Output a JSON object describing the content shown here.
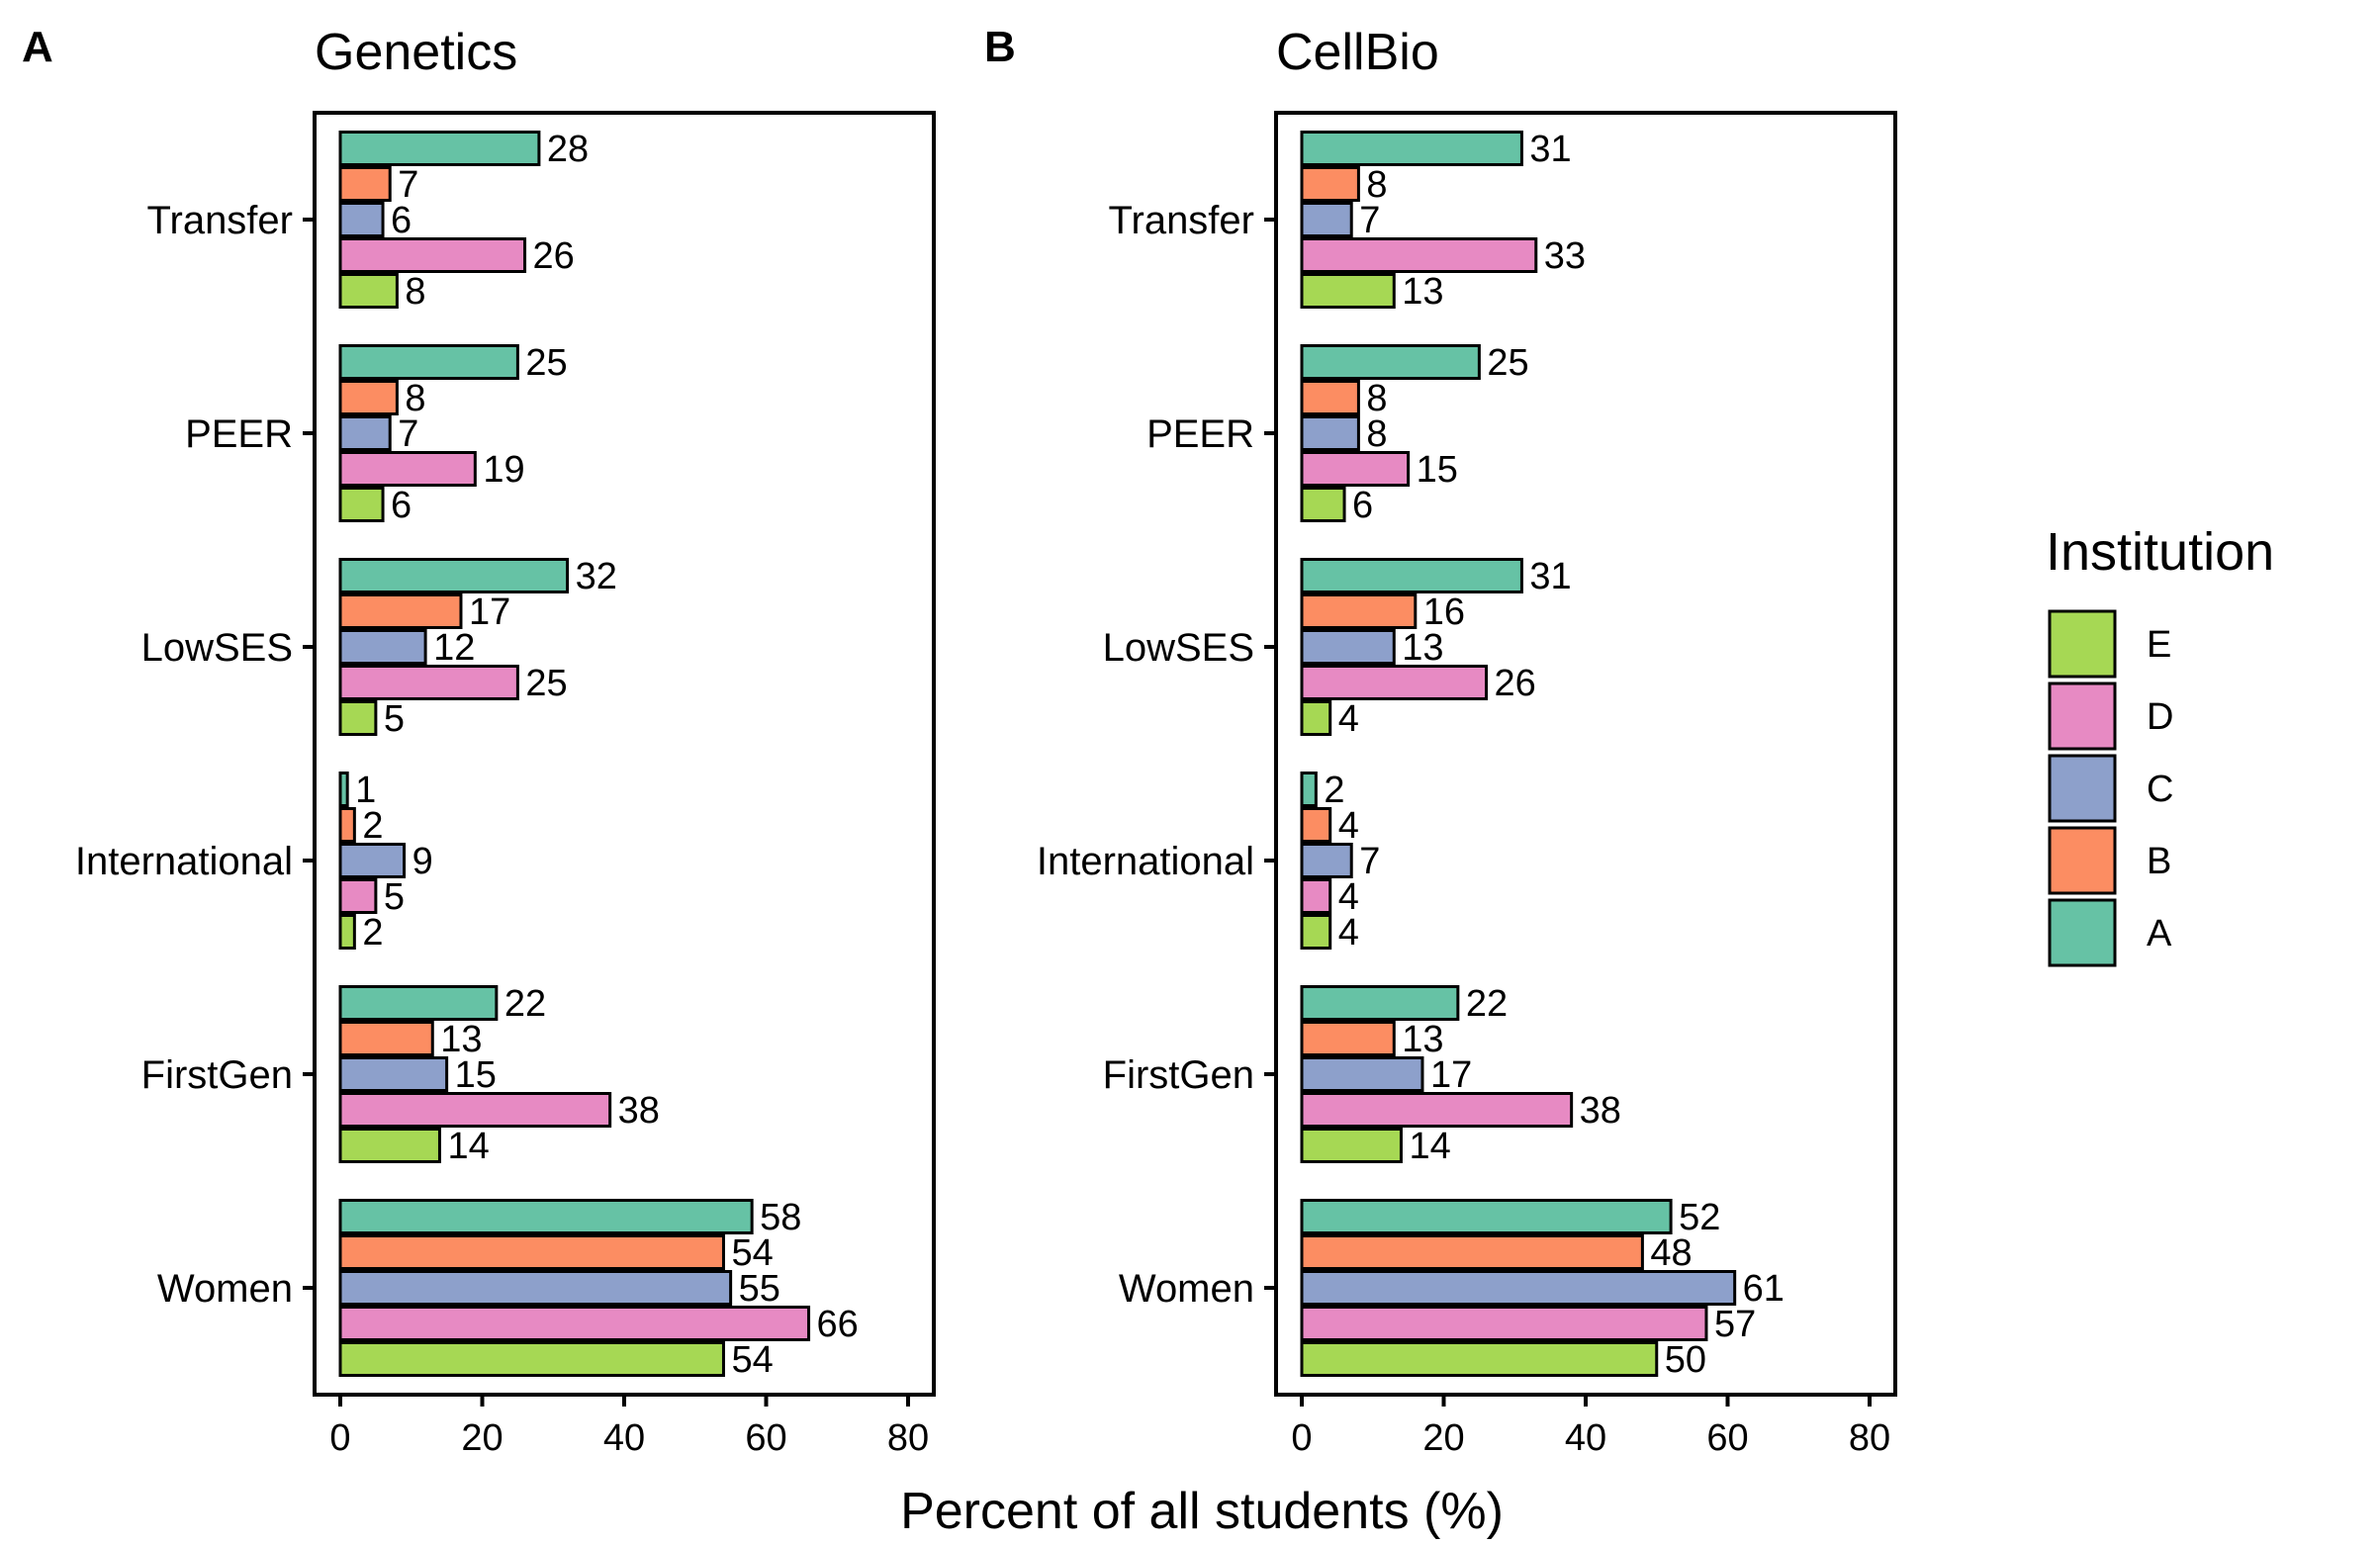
{
  "chart_data": [
    {
      "type": "bar",
      "orientation": "horizontal",
      "panel_letter": "A",
      "title": "Genetics",
      "categories": [
        "Transfer",
        "PEER",
        "LowSES",
        "International",
        "FirstGen",
        "Women"
      ],
      "series": [
        {
          "name": "A",
          "values": [
            28,
            25,
            32,
            1,
            22,
            58
          ]
        },
        {
          "name": "B",
          "values": [
            7,
            8,
            17,
            2,
            13,
            54
          ]
        },
        {
          "name": "C",
          "values": [
            6,
            7,
            12,
            9,
            15,
            55
          ]
        },
        {
          "name": "D",
          "values": [
            26,
            19,
            25,
            5,
            38,
            66
          ]
        },
        {
          "name": "E",
          "values": [
            8,
            6,
            5,
            2,
            14,
            54
          ]
        }
      ],
      "xlim": [
        0,
        80
      ],
      "xticks": [
        0,
        20,
        40,
        60,
        80
      ],
      "grid": false
    },
    {
      "type": "bar",
      "orientation": "horizontal",
      "panel_letter": "B",
      "title": "CellBio",
      "categories": [
        "Transfer",
        "PEER",
        "LowSES",
        "International",
        "FirstGen",
        "Women"
      ],
      "series": [
        {
          "name": "A",
          "values": [
            31,
            25,
            31,
            2,
            22,
            52
          ]
        },
        {
          "name": "B",
          "values": [
            8,
            8,
            16,
            4,
            13,
            48
          ]
        },
        {
          "name": "C",
          "values": [
            7,
            8,
            13,
            7,
            17,
            61
          ]
        },
        {
          "name": "D",
          "values": [
            33,
            15,
            26,
            4,
            38,
            57
          ]
        },
        {
          "name": "E",
          "values": [
            13,
            6,
            4,
            4,
            14,
            50
          ]
        }
      ],
      "xlim": [
        0,
        80
      ],
      "xticks": [
        0,
        20,
        40,
        60,
        80
      ],
      "grid": false
    }
  ],
  "xlabel": "Percent of all students (%)",
  "legend": {
    "title": "Institution",
    "placement": "right",
    "items": [
      "E",
      "D",
      "C",
      "B",
      "A"
    ]
  },
  "colors": {
    "A": "#66c2a5",
    "B": "#fc8d62",
    "C": "#8da0cb",
    "D": "#e78ac3",
    "E": "#a6d854"
  }
}
